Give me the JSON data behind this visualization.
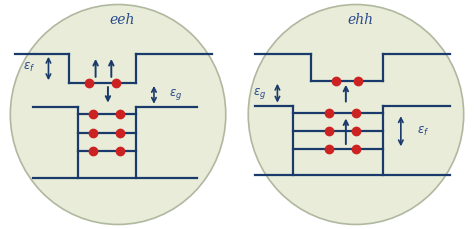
{
  "bg_color": "#ffffff",
  "circle_color": "#e8ecd8",
  "circle_edge": "#b0b8a0",
  "line_color": "#1a3a6b",
  "dot_color": "#cc2222",
  "arrow_color": "#1a3a6b",
  "title_color": "#2a4a8b",
  "label_color": "#2a4a8b",
  "fig_bg": "#ffffff",
  "eeh_title": "eeh",
  "ehh_title": "ehh",
  "eps_f": "$\\varepsilon_f$",
  "eps_g": "$\\varepsilon_g$"
}
